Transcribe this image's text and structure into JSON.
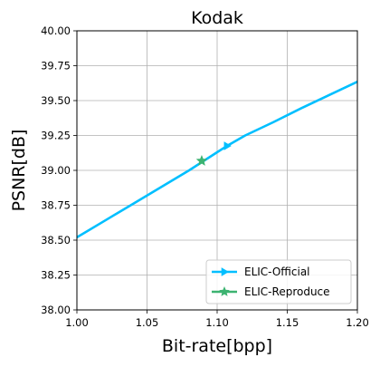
{
  "chart_data": {
    "type": "line",
    "title": "Kodak",
    "xlabel": "Bit-rate[bpp]",
    "ylabel": "PSNR[dB]",
    "xlim": [
      1.0,
      1.2
    ],
    "ylim": [
      38.0,
      40.0
    ],
    "xticks": [
      "1.00",
      "1.05",
      "1.10",
      "1.15",
      "1.20"
    ],
    "yticks": [
      "38.00",
      "38.25",
      "38.50",
      "38.75",
      "39.00",
      "39.25",
      "39.50",
      "39.75",
      "40.00"
    ],
    "grid": true,
    "legend_position": "lower-right",
    "series": [
      {
        "name": "ELIC-Official",
        "color": "#00bfff",
        "marker": "triangle-right",
        "x": [
          1.0,
          1.02,
          1.04,
          1.06,
          1.08,
          1.09,
          1.1,
          1.107,
          1.12,
          1.14,
          1.16,
          1.18,
          1.2
        ],
        "y": [
          38.52,
          38.64,
          38.76,
          38.88,
          39.0,
          39.065,
          39.13,
          39.175,
          39.25,
          39.345,
          39.445,
          39.54,
          39.635
        ],
        "marker_points": [
          [
            1.107,
            39.175
          ]
        ]
      },
      {
        "name": "ELIC-Reproduce",
        "color": "#3cb371",
        "marker": "star",
        "x": [
          1.089
        ],
        "y": [
          39.068
        ]
      }
    ]
  }
}
